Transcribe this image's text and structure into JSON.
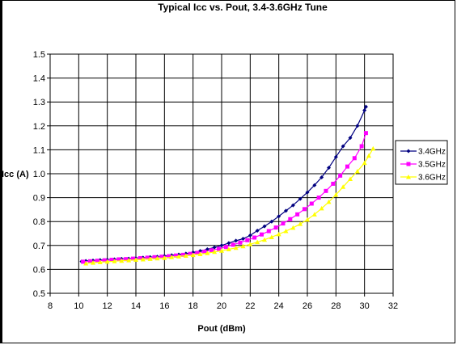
{
  "chart_data": {
    "type": "line",
    "title": "Typical Icc vs. Pout, 3.4-3.6GHz Tune",
    "xlabel": "Pout (dBm)",
    "ylabel": "Icc (A)",
    "xlim": [
      8,
      32
    ],
    "ylim": [
      0.5,
      1.5
    ],
    "xticks": [
      8,
      10,
      12,
      14,
      16,
      18,
      20,
      22,
      24,
      26,
      28,
      30,
      32
    ],
    "yticks": [
      0.5,
      0.6,
      0.7,
      0.8,
      0.9,
      1.0,
      1.1,
      1.2,
      1.3,
      1.4,
      1.5
    ],
    "ytick_labels": [
      "0.5",
      "0.6",
      "0.7",
      "0.8",
      "0.9",
      "1.0",
      "1.1",
      "1.2",
      "1.3",
      "1.4",
      "1.5"
    ],
    "grid": true,
    "legend_position": "right",
    "series": [
      {
        "name": "3.4GHz",
        "color": "#000080",
        "marker": "diamond",
        "points": [
          [
            10.2,
            0.633
          ],
          [
            10.5,
            0.635
          ],
          [
            11.0,
            0.637
          ],
          [
            11.5,
            0.639
          ],
          [
            12.0,
            0.64
          ],
          [
            12.5,
            0.642
          ],
          [
            13.0,
            0.644
          ],
          [
            13.5,
            0.645
          ],
          [
            14.0,
            0.647
          ],
          [
            14.5,
            0.649
          ],
          [
            15.0,
            0.651
          ],
          [
            15.5,
            0.653
          ],
          [
            16.0,
            0.656
          ],
          [
            16.5,
            0.659
          ],
          [
            17.0,
            0.662
          ],
          [
            17.5,
            0.666
          ],
          [
            18.0,
            0.671
          ],
          [
            18.5,
            0.677
          ],
          [
            19.0,
            0.684
          ],
          [
            19.5,
            0.692
          ],
          [
            20.0,
            0.7
          ],
          [
            20.5,
            0.71
          ],
          [
            21.0,
            0.72
          ],
          [
            21.5,
            0.728
          ],
          [
            22.0,
            0.742
          ],
          [
            22.5,
            0.762
          ],
          [
            23.0,
            0.78
          ],
          [
            23.5,
            0.8
          ],
          [
            24.0,
            0.822
          ],
          [
            24.5,
            0.845
          ],
          [
            25.0,
            0.868
          ],
          [
            25.5,
            0.895
          ],
          [
            26.0,
            0.922
          ],
          [
            26.5,
            0.952
          ],
          [
            27.0,
            0.985
          ],
          [
            27.5,
            1.025
          ],
          [
            28.0,
            1.07
          ],
          [
            28.5,
            1.115
          ],
          [
            29.0,
            1.15
          ],
          [
            29.5,
            1.2
          ],
          [
            30.0,
            1.265
          ],
          [
            30.1,
            1.28
          ]
        ]
      },
      {
        "name": "3.5GHz",
        "color": "#ff00ff",
        "marker": "square",
        "points": [
          [
            10.3,
            0.632
          ],
          [
            10.8,
            0.634
          ],
          [
            11.3,
            0.636
          ],
          [
            11.8,
            0.638
          ],
          [
            12.3,
            0.64
          ],
          [
            12.8,
            0.642
          ],
          [
            13.3,
            0.643
          ],
          [
            13.8,
            0.645
          ],
          [
            14.3,
            0.647
          ],
          [
            14.8,
            0.649
          ],
          [
            15.3,
            0.651
          ],
          [
            15.8,
            0.653
          ],
          [
            16.3,
            0.655
          ],
          [
            16.8,
            0.658
          ],
          [
            17.3,
            0.661
          ],
          [
            17.8,
            0.665
          ],
          [
            18.3,
            0.669
          ],
          [
            18.8,
            0.674
          ],
          [
            19.3,
            0.68
          ],
          [
            19.8,
            0.686
          ],
          [
            20.3,
            0.694
          ],
          [
            20.8,
            0.703
          ],
          [
            21.3,
            0.712
          ],
          [
            21.8,
            0.722
          ],
          [
            22.3,
            0.733
          ],
          [
            22.8,
            0.746
          ],
          [
            23.3,
            0.76
          ],
          [
            23.8,
            0.775
          ],
          [
            24.3,
            0.792
          ],
          [
            24.8,
            0.81
          ],
          [
            25.3,
            0.83
          ],
          [
            25.8,
            0.852
          ],
          [
            26.3,
            0.875
          ],
          [
            26.8,
            0.9
          ],
          [
            27.3,
            0.928
          ],
          [
            27.8,
            0.958
          ],
          [
            28.3,
            0.992
          ],
          [
            28.8,
            1.03
          ],
          [
            29.3,
            1.065
          ],
          [
            29.8,
            1.115
          ],
          [
            30.1,
            1.17
          ]
        ]
      },
      {
        "name": "3.6GHz",
        "color": "#ffff00",
        "marker": "triangle",
        "points": [
          [
            10.5,
            0.625
          ],
          [
            11.0,
            0.628
          ],
          [
            11.5,
            0.63
          ],
          [
            12.0,
            0.632
          ],
          [
            12.5,
            0.634
          ],
          [
            13.0,
            0.636
          ],
          [
            13.5,
            0.638
          ],
          [
            14.0,
            0.64
          ],
          [
            14.5,
            0.642
          ],
          [
            15.0,
            0.644
          ],
          [
            15.5,
            0.646
          ],
          [
            16.0,
            0.648
          ],
          [
            16.5,
            0.651
          ],
          [
            17.0,
            0.654
          ],
          [
            17.5,
            0.657
          ],
          [
            18.0,
            0.66
          ],
          [
            18.5,
            0.664
          ],
          [
            19.0,
            0.668
          ],
          [
            19.5,
            0.673
          ],
          [
            20.0,
            0.678
          ],
          [
            20.5,
            0.684
          ],
          [
            21.0,
            0.69
          ],
          [
            21.5,
            0.697
          ],
          [
            22.0,
            0.705
          ],
          [
            22.5,
            0.714
          ],
          [
            23.0,
            0.724
          ],
          [
            23.5,
            0.735
          ],
          [
            24.0,
            0.747
          ],
          [
            24.5,
            0.76
          ],
          [
            25.0,
            0.774
          ],
          [
            25.5,
            0.79
          ],
          [
            26.0,
            0.808
          ],
          [
            26.5,
            0.83
          ],
          [
            27.0,
            0.855
          ],
          [
            27.5,
            0.882
          ],
          [
            28.0,
            0.912
          ],
          [
            28.5,
            0.945
          ],
          [
            29.0,
            0.978
          ],
          [
            29.5,
            1.01
          ],
          [
            30.0,
            1.045
          ],
          [
            30.3,
            1.075
          ],
          [
            30.6,
            1.105
          ]
        ]
      }
    ]
  }
}
